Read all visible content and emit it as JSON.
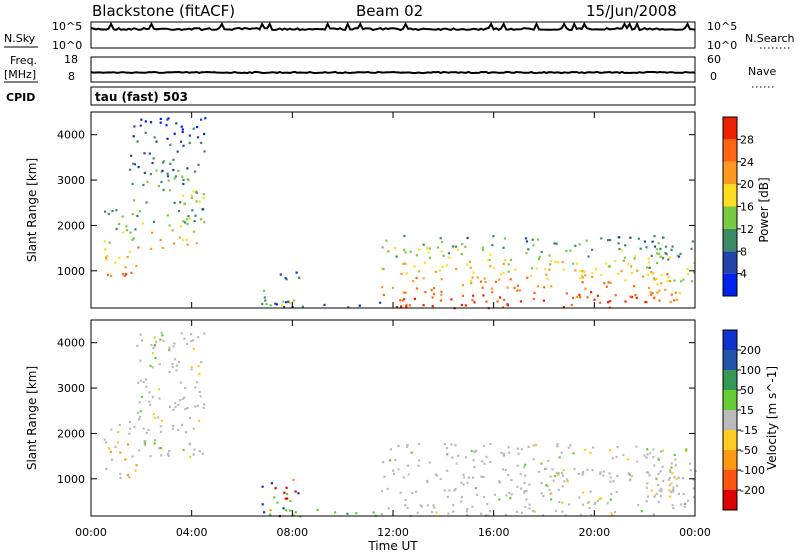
{
  "header": {
    "title": "Blackstone (fitACF)",
    "beam": "Beam 02",
    "date": "15/Jun/2008"
  },
  "panels": {
    "nsky": {
      "label": "N.Sky",
      "left_ticks": [
        "10^5",
        "10^0"
      ],
      "right_ticks": [
        "10^5",
        "10^0"
      ],
      "right_label": "N.Search",
      "right_label_style": "dotted"
    },
    "freq": {
      "label_line1": "Freq.",
      "label_line2": "[MHz]",
      "left_ticks": [
        "18",
        "8"
      ],
      "right_ticks": [
        "60",
        "0"
      ],
      "right_label": "Nave",
      "right_label_style": "dotted"
    },
    "cpid": {
      "label": "CPID",
      "mode": "tau (fast) 503"
    }
  },
  "colors": {
    "power_scale": [
      "#0022ee",
      "#2244aa",
      "#3a8a66",
      "#77cc44",
      "#ffdd22",
      "#ff9922",
      "#ff6611",
      "#ee2200"
    ],
    "velocity_scale": [
      "#1133cc",
      "#2255aa",
      "#339955",
      "#66cc33",
      "#bbbbbb",
      "#ffcc22",
      "#ff9911",
      "#ff5511",
      "#dd0000"
    ]
  },
  "chart_data": [
    {
      "type": "heatmap",
      "name": "power-panel",
      "xlabel": "Time UT",
      "ylabel": "Slant Range [km]",
      "x_ticks": [
        "00:00",
        "04:00",
        "08:00",
        "12:00",
        "16:00",
        "20:00",
        "00:00"
      ],
      "x_range_hours": [
        0,
        24
      ],
      "y_ticks": [
        1000,
        2000,
        3000,
        4000
      ],
      "ylim": [
        180,
        4500
      ],
      "colorbar": {
        "label": "Power [dB]",
        "ticks": [
          4,
          8,
          12,
          16,
          20,
          24,
          28
        ],
        "range": [
          0,
          32
        ]
      },
      "regions": [
        {
          "t0": 0.5,
          "t1": 1.8,
          "r0": 900,
          "r1": 2400,
          "peak_db": 26
        },
        {
          "t0": 1.8,
          "t1": 4.5,
          "r0": 1500,
          "r1": 2500,
          "peak_db": 24
        },
        {
          "t0": 1.5,
          "t1": 4.5,
          "r0": 2500,
          "r1": 4400,
          "peak_db": 14
        },
        {
          "t0": 6.6,
          "t1": 8.3,
          "r0": 200,
          "r1": 1000,
          "peak_db": 16
        },
        {
          "t0": 7.0,
          "t1": 11.5,
          "r0": 180,
          "r1": 350,
          "peak_db": 8
        },
        {
          "t0": 11.5,
          "t1": 23.2,
          "r0": 200,
          "r1": 1800,
          "peak_db": 30
        },
        {
          "t0": 22.0,
          "t1": 24.0,
          "r0": 300,
          "r1": 1700,
          "peak_db": 24
        }
      ]
    },
    {
      "type": "heatmap",
      "name": "velocity-panel",
      "xlabel": "Time UT",
      "ylabel": "Slant Range [km]",
      "x_ticks": [
        "00:00",
        "04:00",
        "08:00",
        "12:00",
        "16:00",
        "20:00",
        "00:00"
      ],
      "x_range_hours": [
        0,
        24
      ],
      "y_ticks": [
        1000,
        2000,
        3000,
        4000
      ],
      "ylim": [
        180,
        4500
      ],
      "colorbar": {
        "label": "Velocity [m s^-1]",
        "ticks": [
          200,
          100,
          50,
          15,
          -15,
          -50,
          -100,
          -200
        ],
        "range": [
          -250,
          250
        ]
      },
      "regions": [
        {
          "t0": 0.5,
          "t1": 1.8,
          "r0": 900,
          "r1": 2400,
          "dominant": "negative"
        },
        {
          "t0": 1.8,
          "t1": 4.5,
          "r0": 1500,
          "r1": 4400,
          "dominant": "ground"
        },
        {
          "t0": 6.6,
          "t1": 8.3,
          "r0": 200,
          "r1": 1000,
          "dominant": "mixed"
        },
        {
          "t0": 7.0,
          "t1": 11.5,
          "r0": 180,
          "r1": 350,
          "dominant": "positive"
        },
        {
          "t0": 11.5,
          "t1": 23.2,
          "r0": 200,
          "r1": 1800,
          "dominant": "ground"
        },
        {
          "t0": 22.0,
          "t1": 24.0,
          "r0": 300,
          "r1": 1700,
          "dominant": "ground"
        }
      ]
    }
  ]
}
